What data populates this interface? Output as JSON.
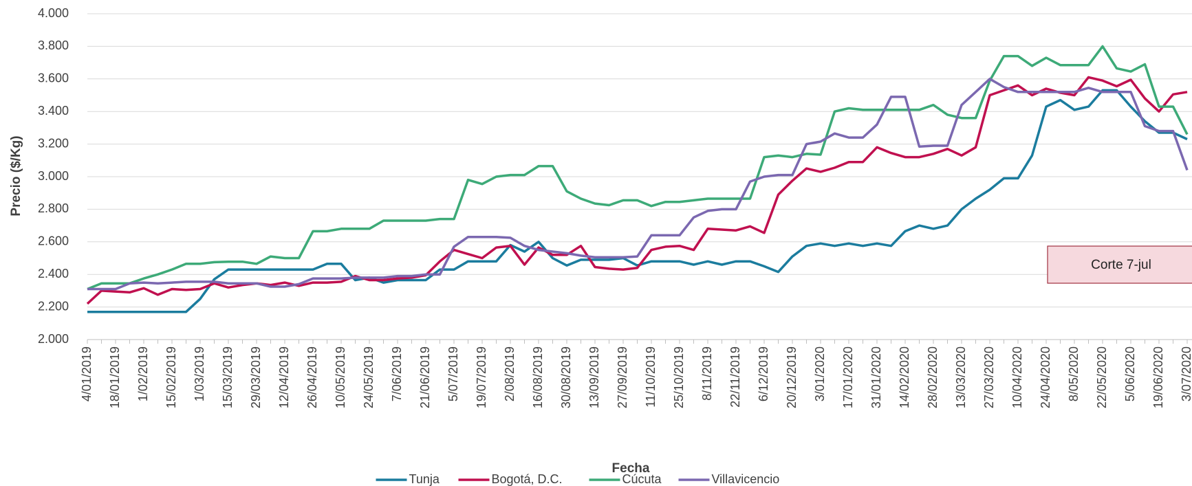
{
  "chart_data": {
    "type": "line",
    "x_label": "Fecha",
    "y_label": "Precio ($/Kg)",
    "annotation": "Corte 7-jul",
    "categories": [
      "4/01/2019",
      null,
      "18/01/2019",
      null,
      "1/02/2019",
      null,
      "15/02/2019",
      null,
      "1/03/2019",
      null,
      "15/03/2019",
      null,
      "29/03/2019",
      null,
      "12/04/2019",
      null,
      "26/04/2019",
      null,
      "10/05/2019",
      null,
      "24/05/2019",
      null,
      "7/06/2019",
      null,
      "21/06/2019",
      null,
      "5/07/2019",
      null,
      "19/07/2019",
      null,
      "2/08/2019",
      null,
      "16/08/2019",
      null,
      "30/08/2019",
      null,
      "13/09/2019",
      null,
      "27/09/2019",
      null,
      "11/10/2019",
      null,
      "25/10/2019",
      null,
      "8/11/2019",
      null,
      "22/11/2019",
      null,
      "6/12/2019",
      null,
      "20/12/2019",
      null,
      "3/01/2020",
      null,
      "17/01/2020",
      null,
      "31/01/2020",
      null,
      "14/02/2020",
      null,
      "28/02/2020",
      null,
      "13/03/2020",
      null,
      "27/03/2020",
      null,
      "10/04/2020",
      null,
      "24/04/2020",
      null,
      "8/05/2020",
      null,
      "22/05/2020",
      null,
      "5/06/2020",
      null,
      "19/06/2020",
      null,
      "3/07/2020"
    ],
    "series": [
      {
        "name": "Tunja",
        "color": "#1B7C9E",
        "values": [
          2170,
          2170,
          2170,
          2170,
          2170,
          2170,
          2170,
          2170,
          2250,
          2370,
          2430,
          2430,
          2430,
          2430,
          2430,
          2430,
          2430,
          2465,
          2465,
          2365,
          2380,
          2350,
          2365,
          2365,
          2365,
          2430,
          2430,
          2480,
          2480,
          2480,
          2580,
          2540,
          2600,
          2500,
          2455,
          2490,
          2490,
          2490,
          2500,
          2455,
          2480,
          2480,
          2480,
          2460,
          2480,
          2460,
          2480,
          2480,
          2450,
          2415,
          2510,
          2575,
          2590,
          2575,
          2590,
          2575,
          2590,
          2575,
          2665,
          2700,
          2680,
          2700,
          2800,
          2865,
          2920,
          2990,
          2990,
          3130,
          3430,
          3470,
          3410,
          3430,
          3530,
          3530,
          3430,
          3340,
          3270,
          3270,
          3230
        ]
      },
      {
        "name": "Bogotá, D.C.",
        "color": "#C0104F",
        "values": [
          2220,
          2300,
          2295,
          2290,
          2315,
          2275,
          2310,
          2305,
          2310,
          2345,
          2320,
          2335,
          2345,
          2335,
          2350,
          2330,
          2350,
          2350,
          2355,
          2390,
          2365,
          2365,
          2375,
          2380,
          2395,
          2480,
          2550,
          2525,
          2500,
          2565,
          2575,
          2460,
          2565,
          2520,
          2520,
          2575,
          2445,
          2435,
          2430,
          2440,
          2550,
          2570,
          2575,
          2550,
          2680,
          2675,
          2670,
          2695,
          2655,
          2890,
          2975,
          3050,
          3030,
          3055,
          3090,
          3090,
          3180,
          3145,
          3120,
          3120,
          3140,
          3170,
          3130,
          3180,
          3500,
          3530,
          3560,
          3500,
          3540,
          3515,
          3500,
          3610,
          3590,
          3555,
          3595,
          3480,
          3400,
          3505,
          3520
        ]
      },
      {
        "name": "Cúcuta",
        "color": "#3DAA78",
        "values": [
          2310,
          2345,
          2345,
          2345,
          2375,
          2400,
          2430,
          2465,
          2465,
          2475,
          2478,
          2478,
          2465,
          2510,
          2500,
          2500,
          2665,
          2665,
          2680,
          2680,
          2680,
          2730,
          2730,
          2730,
          2730,
          2740,
          2740,
          2980,
          2955,
          3000,
          3010,
          3010,
          3065,
          3065,
          2910,
          2865,
          2835,
          2825,
          2855,
          2855,
          2820,
          2845,
          2845,
          2855,
          2865,
          2865,
          2865,
          2865,
          3120,
          3130,
          3120,
          3140,
          3135,
          3400,
          3420,
          3410,
          3410,
          3410,
          3410,
          3410,
          3440,
          3380,
          3360,
          3360,
          3590,
          3740,
          3740,
          3680,
          3730,
          3685,
          3685,
          3685,
          3800,
          3665,
          3645,
          3690,
          3430,
          3430,
          3260
        ]
      },
      {
        "name": "Villavicencio",
        "color": "#7B68B0",
        "values": [
          2310,
          2310,
          2310,
          2345,
          2350,
          2345,
          2350,
          2355,
          2355,
          2355,
          2345,
          2345,
          2345,
          2325,
          2325,
          2340,
          2375,
          2375,
          2375,
          2380,
          2380,
          2380,
          2390,
          2390,
          2400,
          2400,
          2570,
          2630,
          2630,
          2630,
          2625,
          2575,
          2550,
          2540,
          2530,
          2515,
          2505,
          2505,
          2505,
          2510,
          2640,
          2640,
          2640,
          2750,
          2790,
          2800,
          2800,
          2970,
          3000,
          3010,
          3010,
          3200,
          3215,
          3265,
          3240,
          3240,
          3320,
          3490,
          3490,
          3185,
          3190,
          3190,
          3440,
          3520,
          3600,
          3550,
          3520,
          3520,
          3520,
          3520,
          3520,
          3545,
          3520,
          3520,
          3520,
          3310,
          3280,
          3280,
          3040
        ]
      }
    ],
    "ylim": [
      2000,
      4000
    ],
    "yticks": [
      {
        "value": 2000,
        "label": "2.000"
      },
      {
        "value": 2200,
        "label": "2.200"
      },
      {
        "value": 2400,
        "label": "2.400"
      },
      {
        "value": 2600,
        "label": "2.600"
      },
      {
        "value": 2800,
        "label": "2.800"
      },
      {
        "value": 3000,
        "label": "3.000"
      },
      {
        "value": 3200,
        "label": "3.200"
      },
      {
        "value": 3400,
        "label": "3.400"
      },
      {
        "value": 3600,
        "label": "3.600"
      },
      {
        "value": 3800,
        "label": "3.800"
      },
      {
        "value": 4000,
        "label": "4.000"
      }
    ],
    "grid": true,
    "legend": "bottom"
  }
}
